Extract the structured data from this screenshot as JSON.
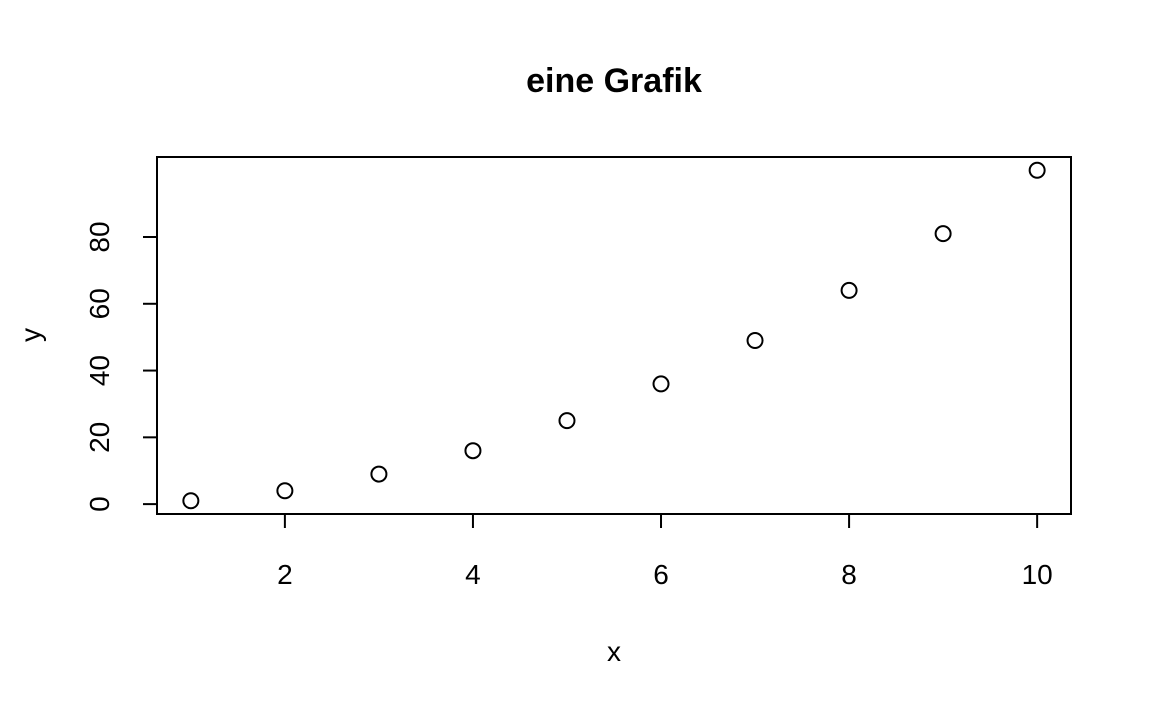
{
  "chart_data": {
    "type": "scatter",
    "title": "eine Grafik",
    "xlabel": "x",
    "ylabel": "y",
    "x": [
      1,
      2,
      3,
      4,
      5,
      6,
      7,
      8,
      9,
      10
    ],
    "y": [
      1,
      4,
      9,
      16,
      25,
      36,
      49,
      64,
      81,
      100
    ],
    "xticks": [
      2,
      4,
      6,
      8,
      10
    ],
    "yticks": [
      0,
      20,
      40,
      60,
      80
    ],
    "xlim": [
      0.64,
      10.36
    ],
    "ylim": [
      -2.96,
      103.96
    ],
    "marker": "open-circle",
    "grid": false,
    "legend": "none",
    "colors": {
      "marker_stroke": "#000000",
      "axes": "#000000",
      "background": "#ffffff"
    }
  }
}
